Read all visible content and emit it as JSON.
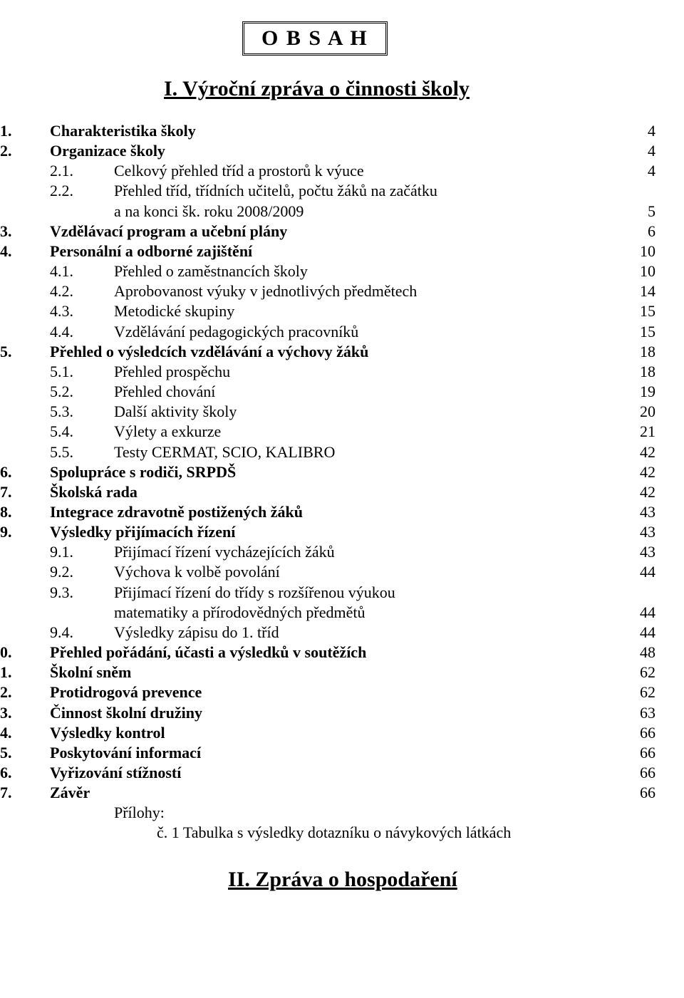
{
  "title_box": "O B S A H",
  "heading1": "I. Výroční zpráva o činnosti školy",
  "heading2": "II. Zpráva o hospodaření",
  "attachments_label": "Přílohy:",
  "attachment_item": "č. 1   Tabulka s výsledky dotazníku o návykových látkách",
  "toc": [
    {
      "lvl": 0,
      "num": "1.",
      "label": "Charakteristika školy",
      "page": "4",
      "bold": true
    },
    {
      "lvl": 0,
      "num": "2.",
      "label": "Organizace školy",
      "page": "4",
      "bold": true
    },
    {
      "lvl": 1,
      "num": "2.1.",
      "label": "Celkový přehled tříd a prostorů k výuce",
      "page": "4"
    },
    {
      "lvl": 1,
      "num": "2.2.",
      "label": "Přehled tříd, třídních učitelů, počtu žáků na začátku",
      "page": ""
    },
    {
      "lvl": 1,
      "num": "",
      "label": "a na konci šk. roku 2008/2009",
      "page": "5"
    },
    {
      "lvl": 0,
      "num": "3.",
      "label": "Vzdělávací program a učební plány",
      "page": "6",
      "bold": true
    },
    {
      "lvl": 0,
      "num": "4.",
      "label": "Personální a odborné zajištění",
      "page": "10",
      "bold": true
    },
    {
      "lvl": 1,
      "num": "4.1.",
      "label": "Přehled o zaměstnancích školy",
      "page": "10"
    },
    {
      "lvl": 1,
      "num": "4.2.",
      "label": "Aprobovanost výuky v jednotlivých předmětech",
      "page": "14"
    },
    {
      "lvl": 1,
      "num": "4.3.",
      "label": "Metodické skupiny",
      "page": "15"
    },
    {
      "lvl": 1,
      "num": "4.4.",
      "label": "Vzdělávání pedagogických pracovníků",
      "page": "15"
    },
    {
      "lvl": 0,
      "num": "5.",
      "label": "Přehled o výsledcích vzdělávání a výchovy žáků",
      "page": "18",
      "bold": true
    },
    {
      "lvl": 1,
      "num": "5.1.",
      "label": "Přehled prospěchu",
      "page": "18"
    },
    {
      "lvl": 1,
      "num": "5.2.",
      "label": "Přehled chování",
      "page": "19"
    },
    {
      "lvl": 1,
      "num": "5.3.",
      "label": "Další aktivity školy",
      "page": "20"
    },
    {
      "lvl": 1,
      "num": "5.4.",
      "label": "Výlety a exkurze",
      "page": "21"
    },
    {
      "lvl": 1,
      "num": "5.5.",
      "label": "Testy CERMAT, SCIO, KALIBRO",
      "page": "42"
    },
    {
      "lvl": 0,
      "num": "6.",
      "label": "Spolupráce s rodiči, SRPDŠ",
      "page": "42",
      "bold": true
    },
    {
      "lvl": 0,
      "num": "7.",
      "label": "Školská rada",
      "page": "42",
      "bold": true
    },
    {
      "lvl": 0,
      "num": "8.",
      "label": "Integrace zdravotně postižených žáků",
      "page": "43",
      "bold": true
    },
    {
      "lvl": 0,
      "num": "9.",
      "label": "Výsledky přijímacích řízení",
      "page": "43",
      "bold": true
    },
    {
      "lvl": 1,
      "num": "9.1.",
      "label": "Přijímací řízení vycházejících žáků",
      "page": "43"
    },
    {
      "lvl": 1,
      "num": "9.2.",
      "label": "Výchova k volbě povolání",
      "page": "44"
    },
    {
      "lvl": 1,
      "num": "9.3.",
      "label": "Přijímací řízení do třídy s rozšířenou výukou",
      "page": ""
    },
    {
      "lvl": 1,
      "num": "",
      "label": " matematiky a přírodovědných předmětů",
      "page": "44",
      "contIndent": true
    },
    {
      "lvl": 1,
      "num": "9.4.",
      "label": "Výsledky zápisu do 1. tříd",
      "page": "44"
    },
    {
      "lvl": 0,
      "num": "0.",
      "label": "Přehled pořádání, účasti a výsledků v soutěžích",
      "page": "48",
      "bold": true
    },
    {
      "lvl": 0,
      "num": "1.",
      "label": "Školní sněm",
      "page": "62",
      "bold": true
    },
    {
      "lvl": 0,
      "num": "2.",
      "label": "Protidrogová prevence",
      "page": "62",
      "bold": true
    },
    {
      "lvl": 0,
      "num": "3.",
      "label": "Činnost školní družiny",
      "page": "63",
      "bold": true
    },
    {
      "lvl": 0,
      "num": "4.",
      "label": "Výsledky kontrol",
      "page": "66",
      "bold": true
    },
    {
      "lvl": 0,
      "num": "5.",
      "label": "Poskytování informací",
      "page": "66",
      "bold": true
    },
    {
      "lvl": 0,
      "num": "6.",
      "label": "Vyřizování stížností",
      "page": "66",
      "bold": true
    },
    {
      "lvl": 0,
      "num": "7.",
      "label": "Závěr",
      "page": "66",
      "bold": true
    }
  ]
}
